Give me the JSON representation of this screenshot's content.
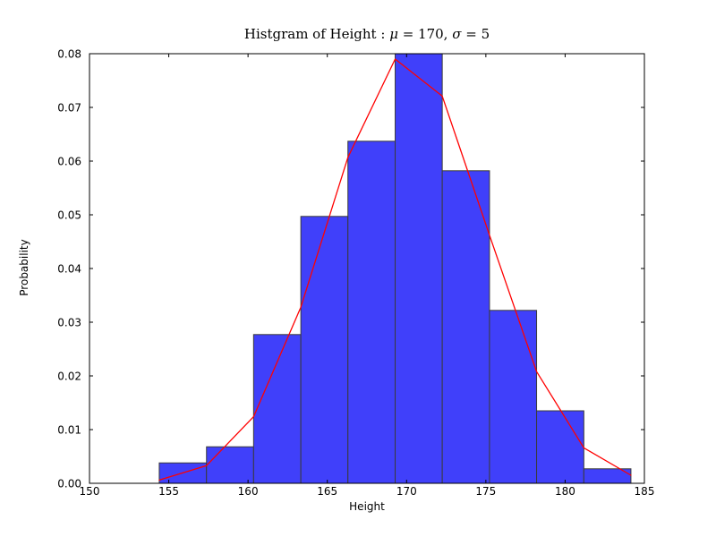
{
  "chart_data": {
    "type": "histogram",
    "title": "Histgram of Height : μ = 170, σ = 5",
    "title_parts": {
      "prefix": "Histgram of Height : ",
      "mu_symbol": "μ",
      "mu_value": " = 170, ",
      "sigma_symbol": "σ",
      "sigma_value": " = 5"
    },
    "mu": 170,
    "sigma": 5,
    "xlabel": "Height",
    "ylabel": "Probability",
    "xlim": [
      150,
      185
    ],
    "ylim": [
      0,
      0.08
    ],
    "grid": false,
    "legend": null,
    "xticks": {
      "values": [
        150,
        155,
        160,
        165,
        170,
        175,
        180,
        185
      ],
      "labels": [
        "150",
        "155",
        "160",
        "165",
        "170",
        "175",
        "180",
        "185"
      ]
    },
    "yticks": {
      "values": [
        0.0,
        0.01,
        0.02,
        0.03,
        0.04,
        0.05,
        0.06,
        0.07,
        0.08
      ],
      "labels": [
        "0.00",
        "0.01",
        "0.02",
        "0.03",
        "0.04",
        "0.05",
        "0.06",
        "0.07",
        "0.08"
      ]
    },
    "series": [
      {
        "name": "height-histogram-bars",
        "type": "bar",
        "bin_edges": [
          154.4,
          157.38,
          160.35,
          163.33,
          166.3,
          169.28,
          172.25,
          175.23,
          178.2,
          181.18,
          184.15
        ],
        "heights": [
          0.0038,
          0.0068,
          0.0277,
          0.0497,
          0.0637,
          0.08,
          0.0582,
          0.0322,
          0.0135,
          0.0027
        ],
        "fill_color": "#4040fa",
        "edge_color": "#3a3a3a",
        "edge_width": 1
      },
      {
        "name": "normal-pdf-line",
        "type": "line",
        "x": [
          154.4,
          157.38,
          160.35,
          163.33,
          166.3,
          169.28,
          172.25,
          175.23,
          178.2,
          181.18,
          184.15
        ],
        "y": [
          0.0006,
          0.0033,
          0.0124,
          0.0328,
          0.0607,
          0.079,
          0.0721,
          0.0462,
          0.0208,
          0.0066,
          0.0015
        ],
        "color": "#ff0000",
        "width": 1.3
      }
    ],
    "spine_color": "#000000",
    "tick_color": "#000000",
    "tick_length": 4,
    "tick_label_color": "#000000"
  }
}
